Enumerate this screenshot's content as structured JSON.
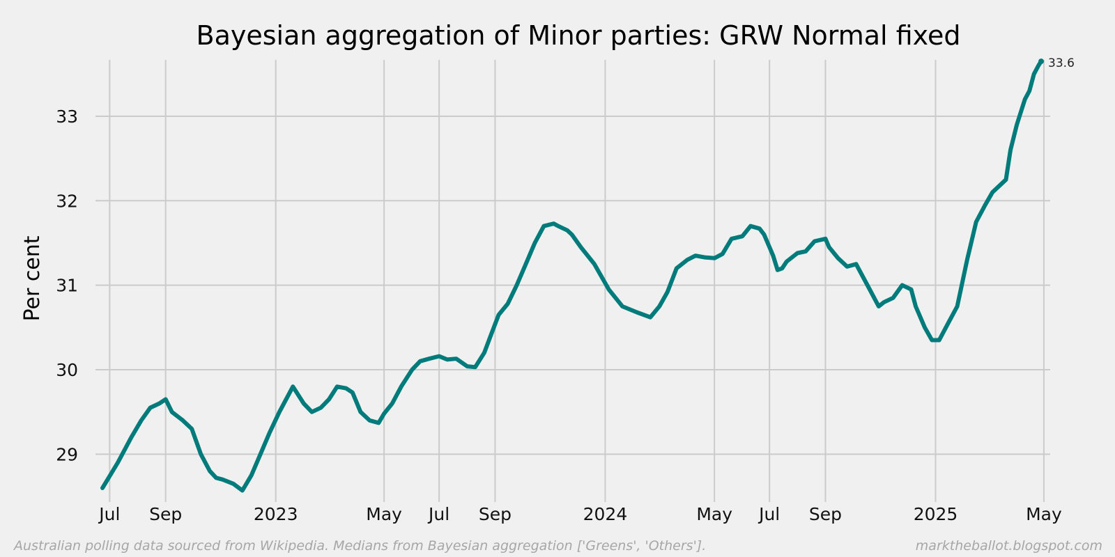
{
  "chart_data": {
    "type": "line",
    "title": "Bayesian aggregation of Minor parties: GRW Normal fixed",
    "xlabel": "",
    "ylabel": "Per cent",
    "ylim": [
      28.5,
      33.7
    ],
    "y_ticks": [
      29,
      30,
      31,
      32,
      33
    ],
    "x_ticks": [
      {
        "date": "2022-07-01",
        "label": "Jul"
      },
      {
        "date": "2022-09-01",
        "label": "Sep"
      },
      {
        "date": "2023-01-01",
        "label": "2023"
      },
      {
        "date": "2023-05-01",
        "label": "May"
      },
      {
        "date": "2023-07-01",
        "label": "Jul"
      },
      {
        "date": "2023-09-01",
        "label": "Sep"
      },
      {
        "date": "2024-01-01",
        "label": "2024"
      },
      {
        "date": "2024-05-01",
        "label": "May"
      },
      {
        "date": "2024-07-01",
        "label": "Jul"
      },
      {
        "date": "2024-09-01",
        "label": "Sep"
      },
      {
        "date": "2025-01-01",
        "label": "2025"
      },
      {
        "date": "2025-05-01",
        "label": "May"
      }
    ],
    "xlim": [
      "2022-06-23",
      "2025-05-08"
    ],
    "grid": true,
    "series": [
      {
        "color": "#007b7b",
        "x": [
          "2022-06-23",
          "2022-07-10",
          "2022-07-25",
          "2022-08-05",
          "2022-08-15",
          "2022-08-25",
          "2022-09-01",
          "2022-09-08",
          "2022-09-20",
          "2022-09-30",
          "2022-10-10",
          "2022-10-20",
          "2022-10-27",
          "2022-11-03",
          "2022-11-15",
          "2022-11-25",
          "2022-12-05",
          "2022-12-15",
          "2022-12-25",
          "2023-01-05",
          "2023-01-20",
          "2023-02-01",
          "2023-02-10",
          "2023-02-20",
          "2023-03-01",
          "2023-03-10",
          "2023-03-20",
          "2023-03-27",
          "2023-04-05",
          "2023-04-15",
          "2023-04-25",
          "2023-05-01",
          "2023-05-10",
          "2023-05-20",
          "2023-06-01",
          "2023-06-10",
          "2023-06-20",
          "2023-07-01",
          "2023-07-10",
          "2023-07-20",
          "2023-08-01",
          "2023-08-10",
          "2023-08-20",
          "2023-08-27",
          "2023-09-05",
          "2023-09-15",
          "2023-09-25",
          "2023-10-05",
          "2023-10-15",
          "2023-10-25",
          "2023-11-05",
          "2023-11-10",
          "2023-11-20",
          "2023-11-25",
          "2023-12-05",
          "2023-12-20",
          "2024-01-05",
          "2024-01-20",
          "2024-02-05",
          "2024-02-20",
          "2024-03-01",
          "2024-03-10",
          "2024-03-20",
          "2024-04-01",
          "2024-04-10",
          "2024-04-20",
          "2024-05-01",
          "2024-05-10",
          "2024-05-20",
          "2024-06-01",
          "2024-06-10",
          "2024-06-20",
          "2024-06-25",
          "2024-07-01",
          "2024-07-05",
          "2024-07-10",
          "2024-07-15",
          "2024-07-20",
          "2024-08-01",
          "2024-08-10",
          "2024-08-20",
          "2024-09-01",
          "2024-09-05",
          "2024-09-15",
          "2024-09-25",
          "2024-10-05",
          "2024-10-10",
          "2024-10-20",
          "2024-10-30",
          "2024-11-05",
          "2024-11-15",
          "2024-11-25",
          "2024-12-05",
          "2024-12-10",
          "2024-12-20",
          "2024-12-28",
          "2025-01-05",
          "2025-01-15",
          "2025-01-25",
          "2025-02-05",
          "2025-02-15",
          "2025-02-25",
          "2025-03-05",
          "2025-03-15",
          "2025-03-20",
          "2025-03-25",
          "2025-04-01",
          "2025-04-10",
          "2025-04-15",
          "2025-04-20",
          "2025-04-25",
          "2025-04-28"
        ],
        "y": [
          28.6,
          28.9,
          29.2,
          29.4,
          29.55,
          29.6,
          29.65,
          29.5,
          29.4,
          29.3,
          29.0,
          28.8,
          28.72,
          28.7,
          28.65,
          28.57,
          28.75,
          29.0,
          29.25,
          29.5,
          29.8,
          29.6,
          29.5,
          29.55,
          29.65,
          29.8,
          29.78,
          29.73,
          29.5,
          29.4,
          29.37,
          29.48,
          29.6,
          29.8,
          30.0,
          30.1,
          30.13,
          30.16,
          30.12,
          30.13,
          30.04,
          30.03,
          30.2,
          30.4,
          30.65,
          30.78,
          31.0,
          31.25,
          31.5,
          31.7,
          31.73,
          31.7,
          31.65,
          31.6,
          31.45,
          31.25,
          30.95,
          30.75,
          30.68,
          30.62,
          30.75,
          30.92,
          31.2,
          31.3,
          31.35,
          31.33,
          31.32,
          31.37,
          31.55,
          31.58,
          31.7,
          31.67,
          31.6,
          31.45,
          31.35,
          31.18,
          31.2,
          31.28,
          31.38,
          31.4,
          31.52,
          31.55,
          31.45,
          31.32,
          31.22,
          31.25,
          31.15,
          30.95,
          30.75,
          30.8,
          30.85,
          31.0,
          30.95,
          30.75,
          30.5,
          30.35,
          30.35,
          30.55,
          30.75,
          31.3,
          31.75,
          31.95,
          32.1,
          32.2,
          32.25,
          32.6,
          32.9,
          33.2,
          33.3,
          33.5,
          33.6,
          33.65
        ]
      }
    ],
    "annotations": [
      {
        "text": "33.6"
      }
    ]
  },
  "footer": {
    "source": "Australian polling data sourced from Wikipedia. Medians from Bayesian aggregation ['Greens', 'Others'].",
    "site": "marktheballot.blogspot.com"
  }
}
